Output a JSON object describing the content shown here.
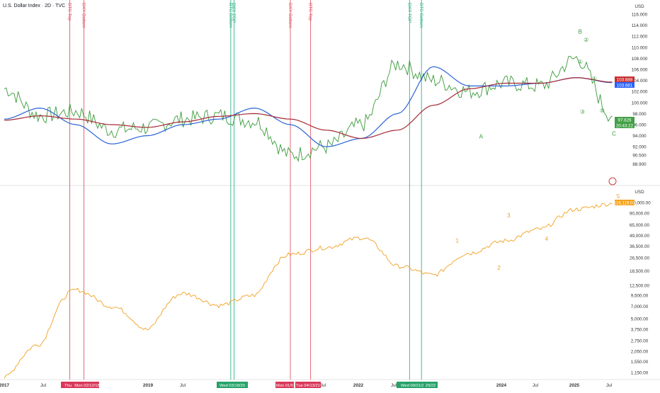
{
  "header": {
    "title": "U.S. Dollar Index · 2D · TVC"
  },
  "colors": {
    "dxy": "#3a9a3a",
    "ma_fast": "#2a62d8",
    "ma_slow": "#a52a35",
    "btc": "#f0a020",
    "red_line": "#e05a66",
    "green_line": "#35b08a",
    "badge_ma_slow": "#c9302f",
    "badge_ma_fast": "#2962ff",
    "badge_dxy": "#43a047",
    "badge_btc": "#f7a21b"
  },
  "chart_data": [
    {
      "type": "line",
      "ylabel": "USD",
      "scale": "linear",
      "ylim": [
        87.5,
        117.5
      ],
      "y_ticks": [
        "116.000",
        "114.000",
        "112.000",
        "110.000",
        "108.000",
        "106.000",
        "104.000",
        "102.000",
        "100.000",
        "98.000",
        "96.000",
        "94.000",
        "92.000",
        "90.500",
        "88.900"
      ],
      "x": [
        "2017-01",
        "2017-07",
        "2018-01",
        "2018-07",
        "2019-01",
        "2019-07",
        "2020-01",
        "2020-07",
        "2021-01",
        "2021-07",
        "2022-01",
        "2022-07",
        "2023-01",
        "2023-07",
        "2024-01",
        "2024-07",
        "2025-01",
        "2025-07"
      ],
      "series": [
        {
          "role": "price",
          "values": [
            102.5,
            97.6,
            98.4,
            95.0,
            95.5,
            97.0,
            97.6,
            96.7,
            90.5,
            92.0,
            96.0,
            107.0,
            104.0,
            102.0,
            103.5,
            103.0,
            108.0,
            97.6
          ]
        },
        {
          "role": "ma_fast",
          "values": [
            97.0,
            99.0,
            96.0,
            92.5,
            94.0,
            96.0,
            97.0,
            99.0,
            96.0,
            92.0,
            93.5,
            98.0,
            106.5,
            103.0,
            103.0,
            103.5,
            104.5,
            103.6
          ]
        },
        {
          "role": "ma_slow",
          "values": [
            96.8,
            97.6,
            97.0,
            96.0,
            95.5,
            96.5,
            97.5,
            98.0,
            97.0,
            95.0,
            93.5,
            95.0,
            99.5,
            102.5,
            103.5,
            103.5,
            104.5,
            103.7
          ]
        }
      ],
      "value_badges": [
        "103.688",
        "103.681",
        "97.826",
        "20:43:22"
      ],
      "annotations": [
        "A",
        "B",
        "C",
        "①",
        "②",
        "③",
        "④",
        "⑤"
      ]
    },
    {
      "type": "line",
      "ylabel": "USD",
      "scale": "log",
      "ylim": [
        1000,
        140000
      ],
      "y_ticks": [
        "120,000.00",
        "90,000.00",
        "65,000.00",
        "49,000.00",
        "36,500.00",
        "26,500.00",
        "18,500.00",
        "12,500.00",
        "9,500.00",
        "7,000.00",
        "5,000.00",
        "3,750.00",
        "2,750.00",
        "2,050.00",
        "1,550.00",
        "1,150.00"
      ],
      "x": [
        "2017-01",
        "2017-07",
        "2018-01",
        "2018-07",
        "2019-01",
        "2019-07",
        "2020-01",
        "2020-07",
        "2021-01",
        "2021-07",
        "2022-01",
        "2022-07",
        "2023-01",
        "2023-07",
        "2024-01",
        "2024-07",
        "2025-01",
        "2025-07"
      ],
      "series": [
        {
          "role": "price",
          "values": [
            1000,
            2500,
            11000,
            7000,
            3700,
            10000,
            7200,
            9500,
            29000,
            35000,
            46000,
            21000,
            16500,
            30000,
            42000,
            58000,
            100000,
            116119
          ]
        }
      ],
      "value_badges": [
        "116,119.01"
      ],
      "annotations": [
        "1",
        "2",
        "3",
        "4",
        "5"
      ]
    }
  ],
  "x_axis": {
    "labels": [
      "2017",
      "Jul",
      "2019",
      "Jul",
      "Jul",
      "2022",
      "Jul",
      "2024",
      "Jul",
      "2025",
      "Jul"
    ]
  },
  "events": [
    {
      "label": "BTC Top",
      "kind": "red",
      "date": "2017-12"
    },
    {
      "label": "DXY Bottom",
      "kind": "red",
      "date": "2018-02-12"
    },
    {
      "label": "BTC Bottom",
      "kind": "green",
      "date": "2020-03"
    },
    {
      "label": "DXY TOP",
      "kind": "green",
      "date": "2020-03-18"
    },
    {
      "label": "DXY Bottom",
      "kind": "red",
      "date": "2021-01"
    },
    {
      "label": "BTC Top",
      "kind": "red",
      "date": "2021-04-13"
    },
    {
      "label": "DXY TOP",
      "kind": "green",
      "date": "2022-09"
    },
    {
      "label": "BTC Bottom",
      "kind": "green",
      "date": "2022-11"
    }
  ],
  "date_badges": [
    {
      "text": "Thu",
      "kind": "red"
    },
    {
      "text": "Mon 02/12/18",
      "kind": "red"
    },
    {
      "text": "Wed 03/18/20",
      "kind": "green"
    },
    {
      "text": "Mon 01/0",
      "kind": "red"
    },
    {
      "text": "Tue 04/13/21",
      "kind": "red"
    },
    {
      "text": "Wed 09/21/22",
      "kind": "green"
    },
    {
      "text": "29/22",
      "kind": "green"
    }
  ]
}
